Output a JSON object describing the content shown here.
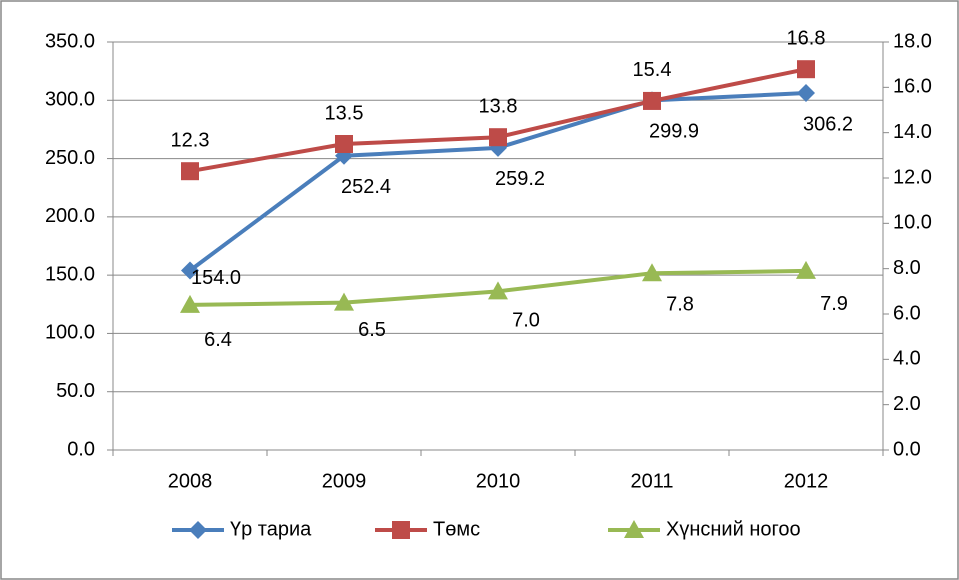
{
  "chart_data": {
    "type": "line",
    "categories": [
      "2008",
      "2009",
      "2010",
      "2011",
      "2012"
    ],
    "series": [
      {
        "name": "Үр тариа",
        "color": "#4a7ebb",
        "marker": "diamond",
        "axis": "y",
        "values": [
          154.0,
          252.4,
          259.2,
          299.9,
          306.2
        ],
        "value_labels": [
          "154.0",
          "252.4",
          "259.2",
          "299.9",
          "306.2"
        ]
      },
      {
        "name": "Төмс",
        "color": "#be4b48",
        "marker": "square",
        "axis": "y2",
        "values": [
          12.3,
          13.5,
          13.8,
          15.4,
          16.8
        ]
      },
      {
        "name": "Хүнсний ногоо",
        "color": "#98b954",
        "marker": "triangle",
        "axis": "y2",
        "values": [
          6.4,
          6.5,
          7.0,
          7.8,
          7.9
        ],
        "value_labels": [
          "6.4",
          "6.5",
          "7.0",
          "7.8",
          "7.9"
        ]
      }
    ],
    "ylim": [
      0,
      350
    ],
    "yticks": [
      {
        "value": 0,
        "label": "0.0"
      },
      {
        "value": 50,
        "label": "50.0"
      },
      {
        "value": 100,
        "label": "100.0"
      },
      {
        "value": 150,
        "label": "150.0"
      },
      {
        "value": 200,
        "label": "200.0"
      },
      {
        "value": 250,
        "label": "250.0"
      },
      {
        "value": 300,
        "label": "300.0"
      },
      {
        "value": 350,
        "label": "350.0"
      }
    ],
    "y2lim": [
      0,
      18
    ],
    "y2ticks": [
      {
        "value": 0,
        "label": "0.0"
      },
      {
        "value": 2,
        "label": "2.0"
      },
      {
        "value": 4,
        "label": "4.0"
      },
      {
        "value": 6,
        "label": "6.0"
      },
      {
        "value": 8,
        "label": "8.0"
      },
      {
        "value": 10,
        "label": "10.0"
      },
      {
        "value": 12,
        "label": "12.0"
      },
      {
        "value": 14,
        "label": "14.0"
      },
      {
        "value": 16,
        "label": "16.0"
      },
      {
        "value": 18,
        "label": "18.0"
      }
    ],
    "grid": true,
    "legend": "bottom"
  }
}
